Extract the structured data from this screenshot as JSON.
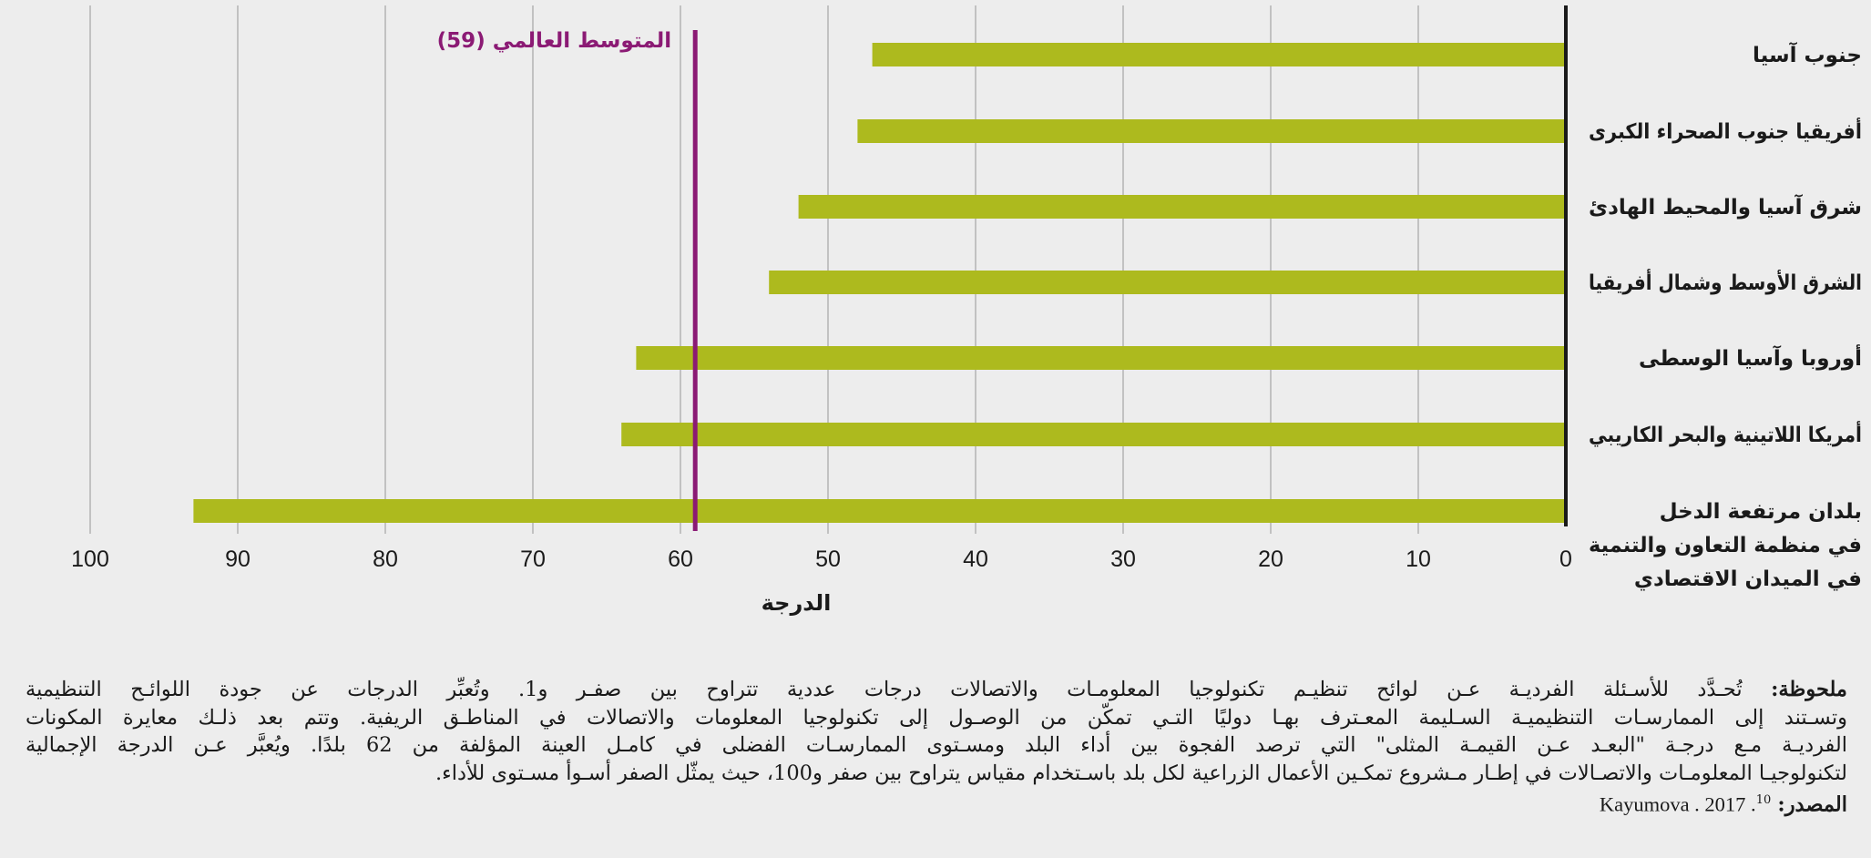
{
  "chart_data": {
    "type": "bar",
    "orientation": "horizontal",
    "direction": "rtl",
    "categories": [
      "جنوب آسيا",
      "أفريقيا جنوب الصحراء الكبرى",
      "شرق آسيا والمحيط الهادئ",
      "الشرق الأوسط وشمال أفريقيا",
      "أوروبا وآسيا الوسطى",
      "أمريكا اللاتينية والبحر الكاريبي",
      [
        "بلدان مرتفعة الدخل",
        "في منظمة التعاون والتنمية",
        "في الميدان الاقتصادي"
      ]
    ],
    "values": [
      47,
      48,
      52,
      54,
      63,
      64,
      93
    ],
    "xlabel": "الدرجة",
    "xlim": [
      0,
      100
    ],
    "xticks": [
      "0",
      "10",
      "20",
      "30",
      "40",
      "50",
      "60",
      "70",
      "80",
      "90",
      "100"
    ],
    "grid": true,
    "reference_line": {
      "value": 59,
      "label": "المتوسط العالمي (59)"
    },
    "colors": {
      "bar": "#adba1e",
      "reference": "#8b1a74",
      "grid": "#aaaaaa",
      "axis": "#1a1a1a"
    }
  },
  "note": {
    "label": "ملحوظة:",
    "lines": [
      "تُحـدَّد للأسـئلة الفرديـة عـن لوائح تنظيـم تكنولوجيا المعلومـات والاتصالات درجات عددية تتراوح بين صفـر و1. وتُعبِّر الدرجات عن جودة اللوائـح التنظيمية",
      "وتسـتند إلى الممارسـات التنظيميـة السـليمة المعـترف بهـا دوليًا التـي تمكّن من الوصـول إلى تكنولوجيا المعلومات والاتصالات في المناطـق الريفية. وتتم بعد ذلـك معايرة المكونات",
      "الفرديـة مـع درجـة \"البعـد عـن القيمـة المثلى\" التي ترصد الفجوة بين أداء البلد ومسـتوى الممارسـات الفضلى في كامـل العينة المؤلفة من 62 بلدًا. ويُعبَّر عـن الدرجة الإجمالية",
      "لتكنولوجيـا المعلومـات والاتصـالات في إطـار مـشروع تمكـين الأعمال الزراعية لكل بلد باسـتخدام مقياس يتراوح بين صفر و100، حيث يمثّل الصفر أسـوأ مسـتوى للأداء."
    ]
  },
  "source": {
    "label": "المصدر:",
    "text": "Kayumova . 2017 .",
    "ref": "10"
  }
}
